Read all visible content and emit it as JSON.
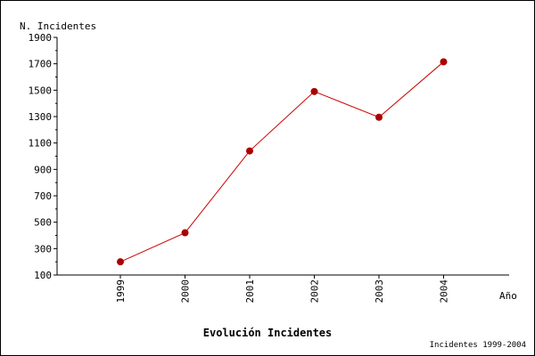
{
  "chart_data": {
    "type": "line",
    "title": "Evolución Incidentes",
    "xlabel": "Año",
    "ylabel": "N. Incidentes",
    "footer": "Incidentes 1999-2004",
    "categories": [
      "1999",
      "2000",
      "2001",
      "2002",
      "2003",
      "2004"
    ],
    "series": [
      {
        "values": [
          200,
          420,
          1040,
          1490,
          1295,
          1715
        ]
      }
    ],
    "ylim": [
      100,
      1900
    ],
    "yticks": [
      100,
      300,
      500,
      700,
      900,
      1100,
      1300,
      1500,
      1700,
      1900
    ],
    "grid": false,
    "colors": {
      "line": "#cc0000",
      "marker": "#aa0000",
      "axis": "#000000"
    }
  }
}
